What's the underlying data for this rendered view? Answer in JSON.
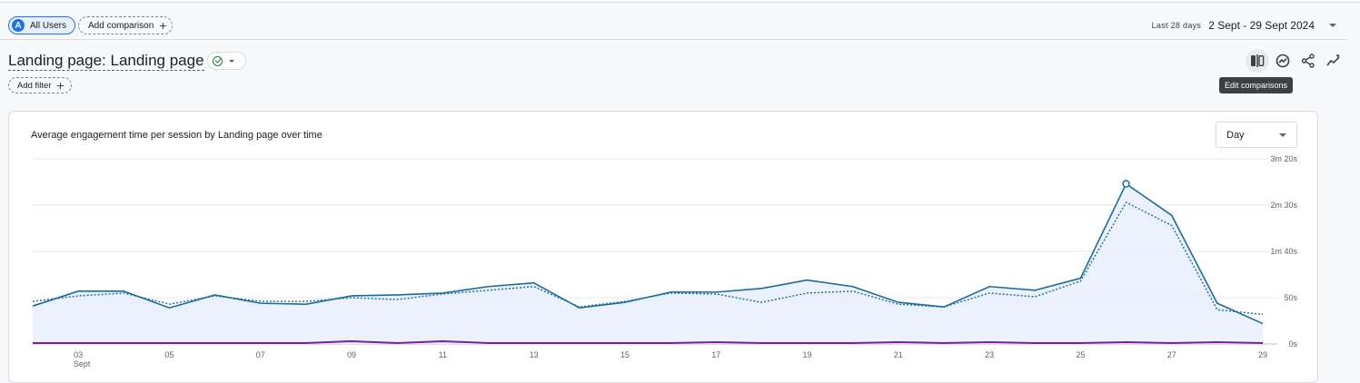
{
  "comparison": {
    "segment_letter": "A",
    "segment_label": "All Users",
    "add_comparison_label": "Add comparison"
  },
  "date_range": {
    "label": "Last 28 days",
    "value": "2 Sept - 29 Sept 2024"
  },
  "report": {
    "title": "Landing page: Landing page",
    "add_filter_label": "Add filter"
  },
  "toolbar": {
    "icons": [
      "edit-comparisons-icon",
      "insights-icon",
      "share-icon",
      "trend-icon"
    ],
    "tooltip": "Edit comparisons"
  },
  "colors": {
    "accent": "#1a73e8",
    "series_primary": "#1a6c9c",
    "series_fill": "#e8f0fe",
    "series_secondary": "#7b1fa2"
  },
  "card": {
    "granularity": "Day"
  },
  "chart_data": {
    "type": "line",
    "title": "Average engagement time per session by Landing page over time",
    "x": [
      "02",
      "03",
      "04",
      "05",
      "06",
      "07",
      "08",
      "09",
      "10",
      "11",
      "12",
      "13",
      "14",
      "15",
      "16",
      "17",
      "18",
      "19",
      "20",
      "21",
      "22",
      "23",
      "24",
      "25",
      "26",
      "27",
      "28",
      "29"
    ],
    "x_tick_labels": [
      "03",
      "05",
      "07",
      "09",
      "11",
      "13",
      "15",
      "17",
      "19",
      "21",
      "23",
      "25",
      "27",
      "29"
    ],
    "x_sublabel": "Sept",
    "y_tick_labels": [
      "0s",
      "50s",
      "1m 40s",
      "2m 30s",
      "3m 20s"
    ],
    "ylim": [
      0,
      200
    ],
    "y_unit": "seconds",
    "grid": true,
    "highlighted_point_index": 24,
    "series": [
      {
        "style": "solid-area",
        "values": [
          41,
          57,
          57,
          39,
          53,
          44,
          43,
          52,
          53,
          55,
          62,
          66,
          39,
          45,
          56,
          56,
          60,
          69,
          62,
          45,
          40,
          62,
          58,
          71,
          173,
          139,
          44,
          22
        ]
      },
      {
        "style": "dotted",
        "values": [
          46,
          52,
          55,
          43,
          52,
          46,
          46,
          50,
          48,
          54,
          58,
          62,
          40,
          46,
          55,
          54,
          45,
          55,
          57,
          43,
          40,
          55,
          51,
          68,
          153,
          128,
          37,
          32
        ]
      },
      {
        "style": "solid-bottom",
        "values": [
          1,
          1,
          1,
          1,
          1,
          1,
          1,
          3,
          1,
          3,
          1,
          1,
          1,
          1,
          1,
          2,
          1,
          1,
          1,
          2,
          1,
          2,
          1,
          1,
          2,
          1,
          2,
          1
        ]
      }
    ]
  }
}
